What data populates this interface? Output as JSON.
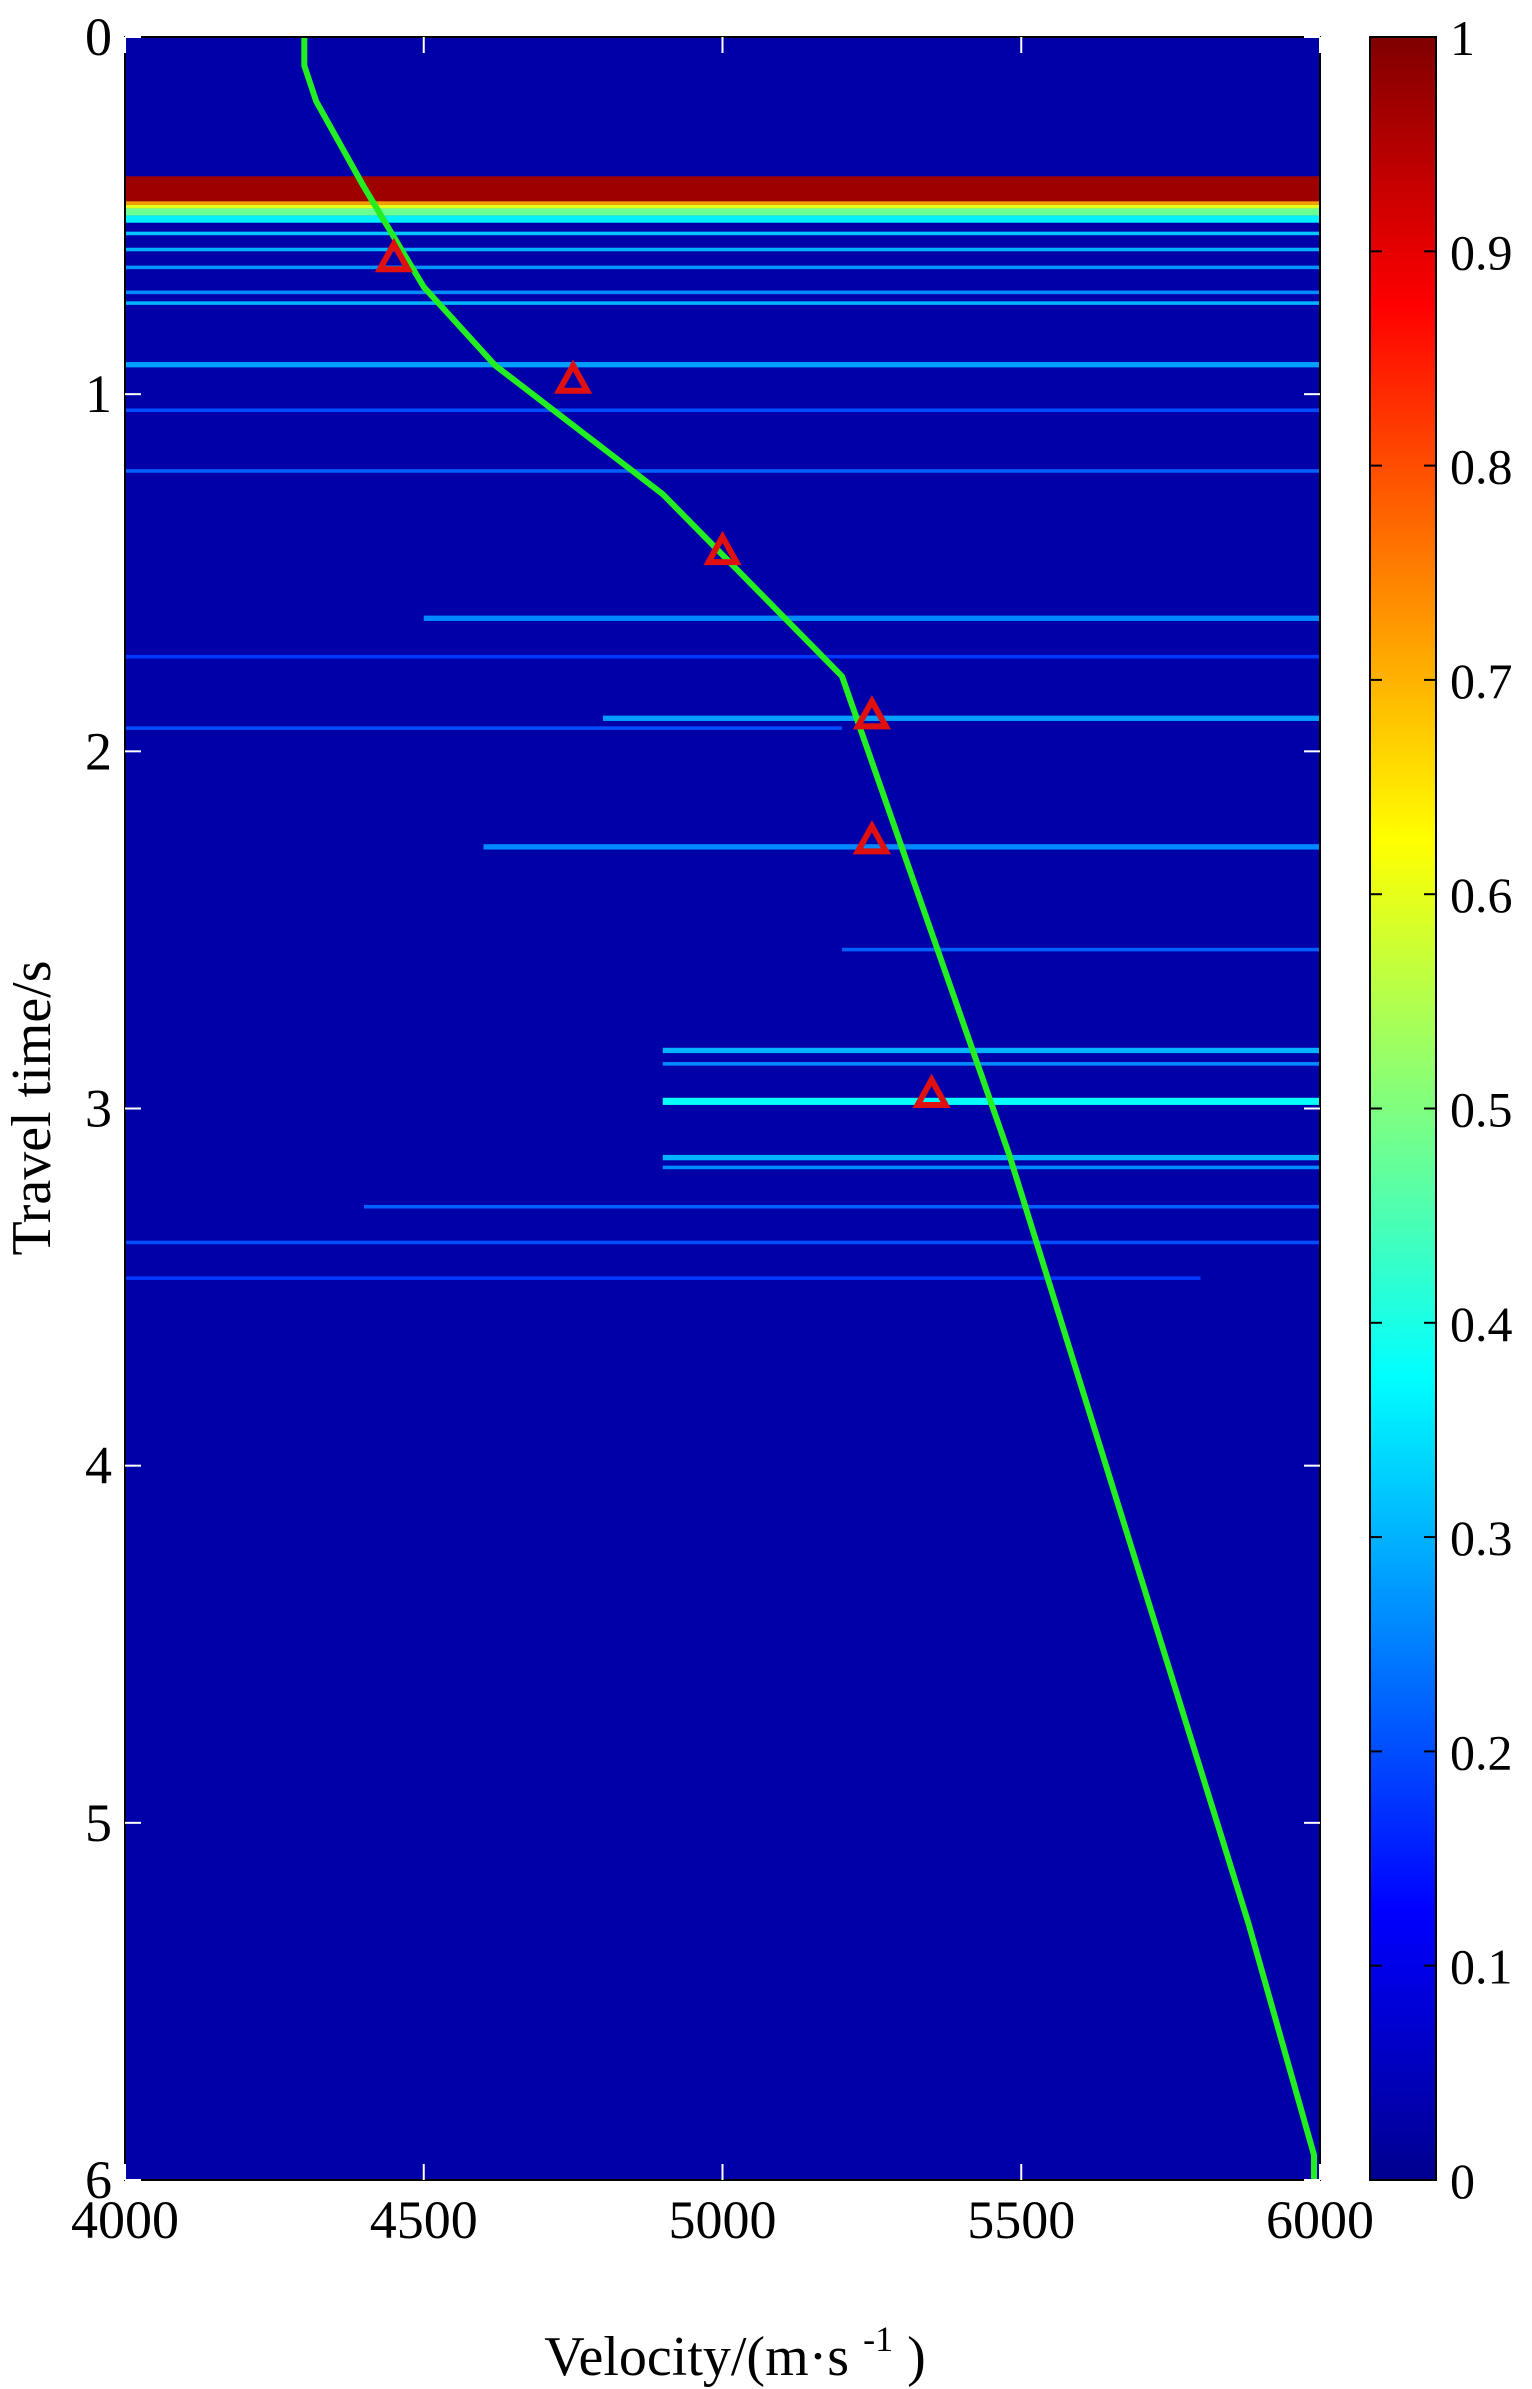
{
  "chart_data": {
    "type": "heatmap",
    "title": "",
    "xlabel": "Velocity/(m·s",
    "xlabel_superscript": "-1",
    "xlabel_suffix": ")",
    "ylabel": "Travel time/s",
    "xlim": [
      4000,
      6000
    ],
    "ylim": [
      0,
      6
    ],
    "y_reversed": true,
    "grid": false,
    "x_ticks": [
      4000,
      4500,
      5000,
      5500,
      6000
    ],
    "x_tick_labels": [
      "4000",
      "4500",
      "5000",
      "5500",
      "6000"
    ],
    "y_ticks": [
      0,
      1,
      2,
      3,
      4,
      5,
      6
    ],
    "y_tick_labels": [
      "0",
      "1",
      "2",
      "3",
      "4",
      "5",
      "6"
    ],
    "background_value": 0.0,
    "colormap": "jet",
    "colorbar": {
      "range": [
        0,
        1
      ],
      "ticks": [
        0,
        0.1,
        0.2,
        0.3,
        0.4,
        0.5,
        0.6,
        0.7,
        0.8,
        0.9,
        1
      ],
      "tick_labels": [
        "0",
        "0.1",
        "0.2",
        "0.3",
        "0.4",
        "0.5",
        "0.6",
        "0.7",
        "0.8",
        "0.9",
        "1"
      ]
    },
    "bands": [
      {
        "t": [
          0.39,
          0.46
        ],
        "v": [
          4000,
          6000
        ],
        "value": 0.97
      },
      {
        "t": [
          0.46,
          0.47
        ],
        "v": [
          4000,
          6000
        ],
        "value": 0.72
      },
      {
        "t": [
          0.47,
          0.48
        ],
        "v": [
          4000,
          6000
        ],
        "value": 0.6
      },
      {
        "t": [
          0.48,
          0.5
        ],
        "v": [
          4000,
          6000
        ],
        "value": 0.48
      },
      {
        "t": [
          0.5,
          0.52
        ],
        "v": [
          4000,
          6000
        ],
        "value": 0.36
      },
      {
        "t": [
          0.545,
          0.555
        ],
        "v": [
          4000,
          6000
        ],
        "value": 0.32
      },
      {
        "t": [
          0.59,
          0.6
        ],
        "v": [
          4000,
          6000
        ],
        "value": 0.3
      },
      {
        "t": [
          0.64,
          0.65
        ],
        "v": [
          4000,
          6000
        ],
        "value": 0.27
      },
      {
        "t": [
          0.71,
          0.72
        ],
        "v": [
          4000,
          6000
        ],
        "value": 0.26
      },
      {
        "t": [
          0.74,
          0.75
        ],
        "v": [
          4000,
          6000
        ],
        "value": 0.3
      },
      {
        "t": [
          0.91,
          0.925
        ],
        "v": [
          4000,
          6000
        ],
        "value": 0.28
      },
      {
        "t": [
          1.04,
          1.05
        ],
        "v": [
          4000,
          6000
        ],
        "value": 0.2
      },
      {
        "t": [
          1.21,
          1.22
        ],
        "v": [
          4000,
          6000
        ],
        "value": 0.22
      },
      {
        "t": [
          1.62,
          1.635
        ],
        "v": [
          4500,
          6000
        ],
        "value": 0.26
      },
      {
        "t": [
          1.73,
          1.74
        ],
        "v": [
          4000,
          6000
        ],
        "value": 0.18
      },
      {
        "t": [
          1.9,
          1.915
        ],
        "v": [
          4800,
          6000
        ],
        "value": 0.28
      },
      {
        "t": [
          1.93,
          1.94
        ],
        "v": [
          4000,
          5200
        ],
        "value": 0.2
      },
      {
        "t": [
          2.26,
          2.275
        ],
        "v": [
          4600,
          6000
        ],
        "value": 0.26
      },
      {
        "t": [
          2.55,
          2.56
        ],
        "v": [
          5200,
          6000
        ],
        "value": 0.22
      },
      {
        "t": [
          2.83,
          2.845
        ],
        "v": [
          4900,
          6000
        ],
        "value": 0.3
      },
      {
        "t": [
          2.87,
          2.88
        ],
        "v": [
          4900,
          6000
        ],
        "value": 0.26
      },
      {
        "t": [
          2.97,
          2.99
        ],
        "v": [
          4900,
          6000
        ],
        "value": 0.38
      },
      {
        "t": [
          3.13,
          3.145
        ],
        "v": [
          4900,
          6000
        ],
        "value": 0.3
      },
      {
        "t": [
          3.16,
          3.17
        ],
        "v": [
          4900,
          6000
        ],
        "value": 0.26
      },
      {
        "t": [
          3.27,
          3.28
        ],
        "v": [
          4400,
          6000
        ],
        "value": 0.22
      },
      {
        "t": [
          3.37,
          3.38
        ],
        "v": [
          4000,
          6000
        ],
        "value": 0.2
      },
      {
        "t": [
          3.47,
          3.48
        ],
        "v": [
          4000,
          5800
        ],
        "value": 0.18
      }
    ],
    "series": [
      {
        "type": "line",
        "color": "#22ee22",
        "x": [
          4300,
          4300,
          4320,
          4400,
          4500,
          4620,
          4900,
          5200,
          5480,
          5880,
          5990,
          5990
        ],
        "y": [
          0,
          0.08,
          0.18,
          0.42,
          0.7,
          0.92,
          1.28,
          1.79,
          3.13,
          5.28,
          5.93,
          6
        ]
      },
      {
        "type": "scatter",
        "marker": "triangle",
        "color": "#e01010",
        "x": [
          4450,
          4750,
          5000,
          5250,
          5250,
          5350
        ],
        "y": [
          0.62,
          0.96,
          1.44,
          1.9,
          2.25,
          2.96
        ]
      }
    ]
  }
}
